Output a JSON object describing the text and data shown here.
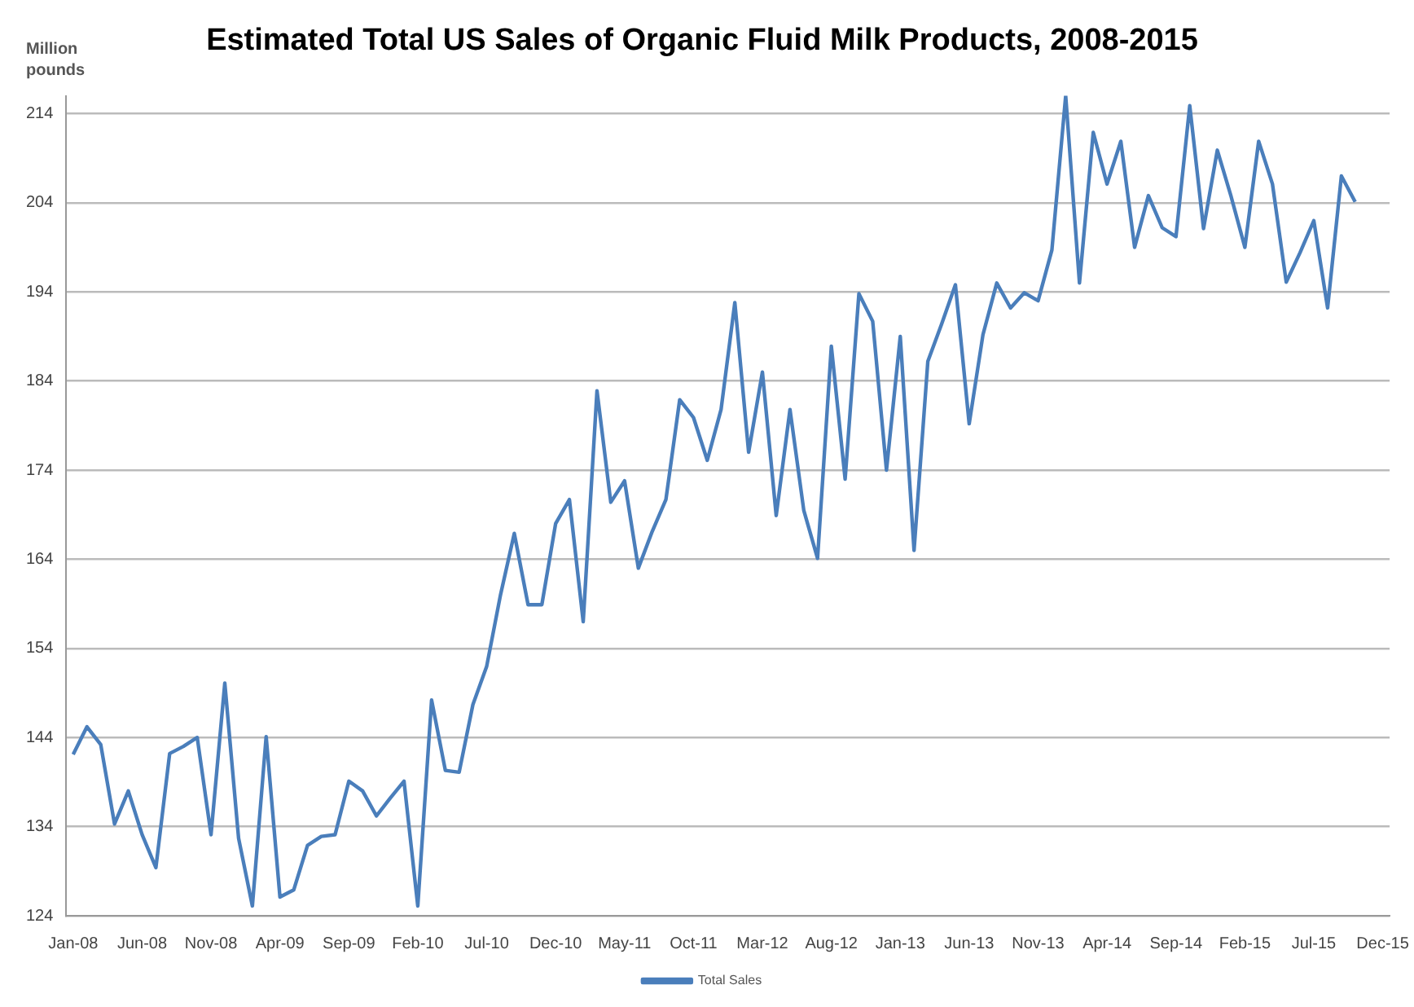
{
  "chart_data": {
    "type": "line",
    "title": "Estimated Total US Sales of Organic Fluid Milk Products, 2008-2015",
    "ylabel": "Million pounds",
    "categories": [
      "Jan-08",
      null,
      null,
      null,
      null,
      "Jun-08",
      null,
      null,
      null,
      null,
      "Nov-08",
      null,
      null,
      null,
      null,
      "Apr-09",
      null,
      null,
      null,
      null,
      "Sep-09",
      null,
      null,
      null,
      null,
      "Feb-10",
      null,
      null,
      null,
      null,
      "Jul-10",
      null,
      null,
      null,
      null,
      "Dec-10",
      null,
      null,
      null,
      null,
      "May-11",
      null,
      null,
      null,
      null,
      "Oct-11",
      null,
      null,
      null,
      null,
      "Mar-12",
      null,
      null,
      null,
      null,
      "Aug-12",
      null,
      null,
      null,
      null,
      "Jan-13",
      null,
      null,
      null,
      null,
      "Jun-13",
      null,
      null,
      null,
      null,
      "Nov-13",
      null,
      null,
      null,
      null,
      "Apr-14",
      null,
      null,
      null,
      null,
      "Sep-14",
      null,
      null,
      null,
      null,
      "Feb-15",
      null,
      null,
      null,
      null,
      "Jul-15",
      null,
      null,
      null,
      null,
      "Dec-15"
    ],
    "series": [
      {
        "name": "Total Sales",
        "color": "#4a7ebb",
        "values": [
          142.1,
          145.2,
          143.2,
          134.3,
          138.0,
          133.1,
          129.4,
          142.2,
          143.0,
          144.0,
          133.1,
          150.1,
          132.7,
          125.1,
          144.1,
          126.1,
          126.9,
          131.9,
          132.9,
          133.1,
          139.1,
          138.0,
          135.2,
          137.2,
          139.1,
          125.1,
          148.2,
          140.3,
          140.1,
          147.7,
          152,
          160,
          166.9,
          158.9,
          158.9,
          168.0,
          170.7,
          157.0,
          182.9,
          170.4,
          172.8,
          163.0,
          167.1,
          170.7,
          181.9,
          179.9,
          175.1,
          180.8,
          192.8,
          176.0,
          185.0,
          168.9,
          180.8,
          169.5,
          164.1,
          187.9,
          173.0,
          193.8,
          190.7,
          174,
          189,
          165,
          186.2,
          190.4,
          194.8,
          179.2,
          189.2,
          195.0,
          192.2,
          193.9,
          193.0,
          198.7,
          216.0,
          195.0,
          211.9,
          206.1,
          210.9,
          199.0,
          204.8,
          201.2,
          200.2,
          214.9,
          201.1,
          209.9,
          204.7,
          199.0,
          210.9,
          206.1,
          195.1,
          198.4,
          202.0,
          192.2,
          207.0,
          204.1,
          null,
          null
        ]
      }
    ],
    "ylim": [
      124,
      216
    ],
    "yticks": [
      124,
      134,
      144,
      154,
      164,
      174,
      184,
      194,
      204,
      214
    ],
    "grid": "y",
    "legend": "bottom",
    "marker": "none",
    "line_style": "solid"
  }
}
